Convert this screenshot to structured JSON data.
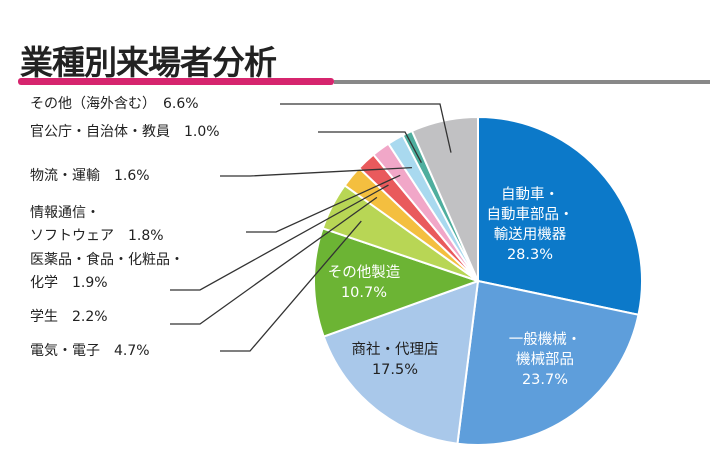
{
  "chart_data": {
    "type": "pie",
    "title": "業種別来場者分析",
    "slices": [
      {
        "label": "自動車・自動車部品・輸送用機器",
        "lines": [
          "自動車・",
          "自動車部品・",
          "輸送用機器",
          "28.3%"
        ],
        "value": 28.3,
        "color": "#0c79c9",
        "inside": true,
        "text_color": "#ffffff"
      },
      {
        "label": "一般機械・機械部品",
        "lines": [
          "一般機械・",
          "機械部品",
          "23.7%"
        ],
        "value": 23.7,
        "color": "#5e9edb",
        "inside": true,
        "text_color": "#ffffff"
      },
      {
        "label": "商社・代理店",
        "lines": [
          "商社・代理店",
          "17.5%"
        ],
        "value": 17.5,
        "color": "#a9c8ea",
        "inside": true,
        "text_color": "#222222"
      },
      {
        "label": "その他製造",
        "lines": [
          "その他製造",
          "10.7%"
        ],
        "value": 10.7,
        "color": "#6cb434",
        "inside": true,
        "text_color": "#ffffff"
      },
      {
        "label": "電気・電子",
        "lines": [
          "電気・電子　4.7%"
        ],
        "value": 4.7,
        "color": "#b8d655",
        "inside": false
      },
      {
        "label": "学生",
        "lines": [
          "学生　2.2%"
        ],
        "value": 2.2,
        "color": "#f4bf3f",
        "inside": false
      },
      {
        "label": "医薬品・食品・化粧品・化学",
        "lines": [
          "医薬品・食品・化粧品・",
          "化学　1.9%"
        ],
        "value": 1.9,
        "color": "#e95a5c",
        "inside": false
      },
      {
        "label": "情報通信・ソフトウェア",
        "lines": [
          "情報通信・",
          "ソフトウェア　1.8%"
        ],
        "value": 1.8,
        "color": "#f1a7c8",
        "inside": false
      },
      {
        "label": "物流・運輸",
        "lines": [
          "物流・運輸　1.6%"
        ],
        "value": 1.6,
        "color": "#a9d9ef",
        "inside": false
      },
      {
        "label": "官公庁・自治体・教員",
        "lines": [
          "官公庁・自治体・教員　1.0%"
        ],
        "value": 1.0,
        "color": "#4fae9e",
        "inside": false
      },
      {
        "label": "その他（海外含む）",
        "lines": [
          "その他（海外含む）　6.6%"
        ],
        "value": 6.6,
        "color": "#c1c1c3",
        "inside": false
      }
    ]
  }
}
